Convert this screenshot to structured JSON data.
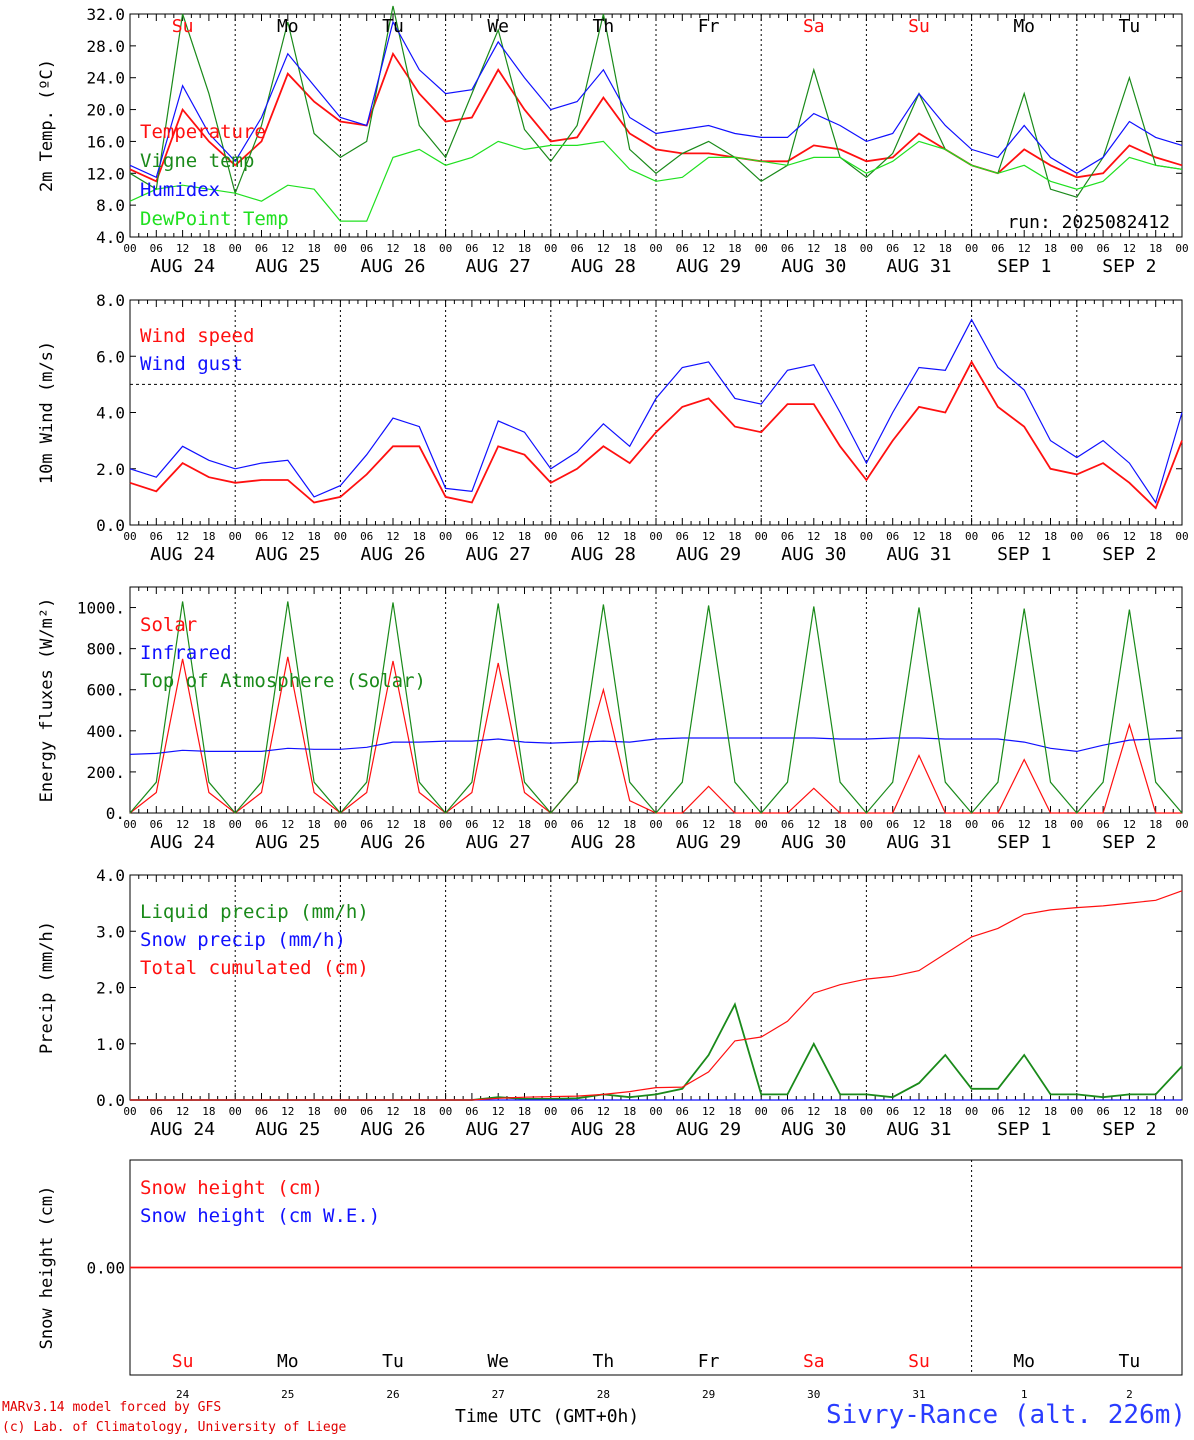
{
  "colors": {
    "red": "#ff1010",
    "dark_green": "#1a8a1a",
    "blue": "#1010ff",
    "light_green": "#20e020",
    "sunday_red": "#ff1010",
    "black": "#000000"
  },
  "day_names": [
    "Su",
    "Mo",
    "Tu",
    "We",
    "Th",
    "Fr",
    "Sa",
    "Su",
    "Mo",
    "Tu"
  ],
  "weekend_days": [
    0,
    6,
    7
  ],
  "date_labels": [
    "AUG 24",
    "AUG 25",
    "AUG 26",
    "AUG 27",
    "AUG 28",
    "AUG 29",
    "AUG 30",
    "AUG 31",
    "SEP  1",
    "SEP  2"
  ],
  "day_numbers": [
    "24",
    "25",
    "26",
    "27",
    "28",
    "29",
    "30",
    "31",
    "1",
    "2"
  ],
  "hour_ticks": [
    "00",
    "06",
    "12",
    "18"
  ],
  "last_hour_tick": "00",
  "footer": {
    "model": "MARv3.14 model forced by GFS",
    "lab": "(c) Lab. of Climatology, University of Liege",
    "time_axis": "Time UTC (GMT+0h)",
    "station": "Sivry-Rance (alt. 226m)"
  },
  "chart_data": [
    {
      "type": "line",
      "ylabel": "2m Temp. (ºC)",
      "ylim": [
        4,
        32
      ],
      "yticks": [
        "4.0",
        "8.0",
        "12.0",
        "16.0",
        "20.0",
        "24.0",
        "28.0",
        "32.0"
      ],
      "annotation": "run: 2025082412",
      "x": [
        "Aug 24 00",
        "Aug 24 06",
        "Aug 24 12",
        "Aug 24 18",
        "Aug 25 00",
        "Aug 25 06",
        "Aug 25 12",
        "Aug 25 18",
        "Aug 26 00",
        "Aug 26 06",
        "Aug 26 12",
        "Aug 26 18",
        "Aug 27 00",
        "Aug 27 06",
        "Aug 27 12",
        "Aug 27 18",
        "Aug 28 00",
        "Aug 28 06",
        "Aug 28 12",
        "Aug 28 18",
        "Aug 29 00",
        "Aug 29 06",
        "Aug 29 12",
        "Aug 29 18",
        "Aug 30 00",
        "Aug 30 06",
        "Aug 30 12",
        "Aug 30 18",
        "Aug 31 00",
        "Aug 31 06",
        "Aug 31 12",
        "Aug 31 18",
        "Sep 1 00",
        "Sep 1 06",
        "Sep 1 12",
        "Sep 1 18",
        "Sep 2 00",
        "Sep 2 06",
        "Sep 2 12",
        "Sep 2 18",
        "Sep 3 00"
      ],
      "series": [
        {
          "name": "Temperature",
          "color": "#ff1010",
          "values": [
            12.5,
            11.0,
            20.0,
            16.0,
            13.0,
            16.0,
            24.5,
            21.0,
            18.5,
            18.0,
            27.0,
            22.0,
            18.5,
            19.0,
            25.0,
            20.0,
            16.0,
            16.5,
            21.5,
            17.0,
            15.0,
            14.5,
            14.5,
            14.0,
            13.5,
            13.5,
            15.5,
            15.0,
            13.5,
            14.0,
            17.0,
            15.0,
            13.0,
            12.0,
            15.0,
            13.0,
            11.5,
            12.0,
            15.5,
            14.0,
            13.0
          ]
        },
        {
          "name": "Vigne temp",
          "color": "#1a8a1a",
          "values": [
            12.0,
            10.0,
            32.0,
            22.0,
            9.5,
            18.0,
            31.0,
            17.0,
            14.0,
            16.0,
            33.0,
            18.0,
            14.0,
            22.0,
            30.0,
            17.5,
            13.5,
            18.0,
            32.0,
            15.0,
            12.0,
            14.5,
            16.0,
            14.0,
            11.0,
            13.0,
            25.0,
            14.0,
            11.5,
            14.5,
            22.0,
            15.0,
            13.0,
            12.0,
            22.0,
            10.0,
            9.0,
            14.0,
            24.0,
            13.0,
            12.5
          ]
        },
        {
          "name": "Humidex",
          "color": "#1010ff",
          "values": [
            13.0,
            11.5,
            23.0,
            17.0,
            13.5,
            19.0,
            27.0,
            23.0,
            19.0,
            18.0,
            31.0,
            25.0,
            22.0,
            22.5,
            28.5,
            24.0,
            20.0,
            21.0,
            25.0,
            19.0,
            17.0,
            17.5,
            18.0,
            17.0,
            16.5,
            16.5,
            19.5,
            18.0,
            16.0,
            17.0,
            22.0,
            18.0,
            15.0,
            14.0,
            18.0,
            14.0,
            12.0,
            14.0,
            18.5,
            16.5,
            15.5
          ]
        },
        {
          "name": "DewPoint Temp",
          "color": "#20e020",
          "values": [
            8.5,
            10.0,
            10.5,
            10.0,
            9.5,
            8.5,
            10.5,
            10.0,
            6.0,
            6.0,
            14.0,
            15.0,
            13.0,
            14.0,
            16.0,
            15.0,
            15.5,
            15.5,
            16.0,
            12.5,
            11.0,
            11.5,
            14.0,
            14.0,
            13.5,
            13.0,
            14.0,
            14.0,
            12.0,
            13.5,
            16.0,
            15.0,
            13.0,
            12.0,
            13.0,
            11.0,
            10.0,
            11.0,
            14.0,
            13.0,
            12.5
          ]
        }
      ]
    },
    {
      "type": "line",
      "ylabel": "10m Wind (m/s)",
      "ylim": [
        0,
        8
      ],
      "yticks": [
        "0.0",
        "2.0",
        "4.0",
        "6.0",
        "8.0"
      ],
      "reference_line": 5.0,
      "series": [
        {
          "name": "Wind speed",
          "color": "#ff1010",
          "values": [
            1.5,
            1.2,
            2.2,
            1.7,
            1.5,
            1.6,
            1.6,
            0.8,
            1.0,
            1.8,
            2.8,
            2.8,
            1.0,
            0.8,
            2.8,
            2.5,
            1.5,
            2.0,
            2.8,
            2.2,
            3.3,
            4.2,
            4.5,
            3.5,
            3.3,
            4.3,
            4.3,
            2.8,
            1.6,
            3.0,
            4.2,
            4.0,
            5.8,
            4.2,
            3.5,
            2.0,
            1.8,
            2.2,
            1.5,
            0.6,
            3.0
          ]
        },
        {
          "name": "Wind gust",
          "color": "#1010ff",
          "values": [
            2.0,
            1.7,
            2.8,
            2.3,
            2.0,
            2.2,
            2.3,
            1.0,
            1.4,
            2.5,
            3.8,
            3.5,
            1.3,
            1.2,
            3.7,
            3.3,
            2.0,
            2.6,
            3.6,
            2.8,
            4.5,
            5.6,
            5.8,
            4.5,
            4.3,
            5.5,
            5.7,
            4.0,
            2.2,
            4.0,
            5.6,
            5.5,
            7.3,
            5.6,
            4.8,
            3.0,
            2.4,
            3.0,
            2.2,
            0.8,
            4.0
          ]
        }
      ]
    },
    {
      "type": "line",
      "ylabel": "Energy fluxes (W/m²)",
      "ylim": [
        0,
        1100
      ],
      "yticks": [
        "0.",
        "200.",
        "400.",
        "600.",
        "800.",
        "1000."
      ],
      "series": [
        {
          "name": "Solar",
          "color": "#ff1010",
          "values": [
            0,
            100,
            750,
            100,
            0,
            100,
            760,
            100,
            0,
            100,
            740,
            100,
            0,
            100,
            730,
            100,
            0,
            150,
            600,
            60,
            0,
            0,
            130,
            0,
            0,
            0,
            120,
            0,
            0,
            0,
            280,
            0,
            0,
            0,
            260,
            0,
            0,
            0,
            430,
            0,
            0
          ]
        },
        {
          "name": "Infrared",
          "color": "#1010ff",
          "values": [
            285,
            290,
            305,
            300,
            300,
            300,
            315,
            310,
            310,
            320,
            345,
            345,
            350,
            350,
            360,
            345,
            340,
            345,
            350,
            345,
            360,
            365,
            365,
            365,
            365,
            365,
            365,
            360,
            360,
            365,
            365,
            360,
            360,
            360,
            345,
            315,
            300,
            330,
            355,
            360,
            365
          ]
        },
        {
          "name": "Top of Atmosphere (Solar)",
          "color": "#1a8a1a",
          "values": [
            0,
            150,
            1030,
            150,
            0,
            150,
            1030,
            150,
            0,
            150,
            1025,
            150,
            0,
            150,
            1020,
            150,
            0,
            150,
            1015,
            150,
            0,
            150,
            1010,
            150,
            0,
            150,
            1005,
            150,
            0,
            150,
            1000,
            150,
            0,
            150,
            995,
            150,
            0,
            150,
            990,
            150,
            0
          ]
        }
      ]
    },
    {
      "type": "line",
      "ylabel": "Precip (mm/h)",
      "ylim": [
        0,
        4
      ],
      "yticks": [
        "0.0",
        "1.0",
        "2.0",
        "3.0",
        "4.0"
      ],
      "series": [
        {
          "name": "Liquid precip (mm/h)",
          "color": "#1a8a1a",
          "values": [
            0,
            0,
            0,
            0,
            0,
            0,
            0,
            0,
            0,
            0,
            0,
            0,
            0,
            0,
            0.05,
            0.02,
            0.02,
            0.03,
            0.1,
            0.05,
            0.1,
            0.2,
            0.8,
            1.7,
            0.1,
            0.1,
            1.0,
            0.1,
            0.1,
            0.05,
            0.3,
            0.8,
            0.2,
            0.2,
            0.8,
            0.1,
            0.1,
            0.05,
            0.1,
            0.1,
            0.6
          ]
        },
        {
          "name": "Snow precip (mm/h)",
          "color": "#1010ff",
          "values": [
            0,
            0,
            0,
            0,
            0,
            0,
            0,
            0,
            0,
            0,
            0,
            0,
            0,
            0,
            0,
            0,
            0,
            0,
            0,
            0,
            0,
            0,
            0,
            0,
            0,
            0,
            0,
            0,
            0,
            0,
            0,
            0,
            0,
            0,
            0,
            0,
            0,
            0,
            0,
            0,
            0
          ]
        },
        {
          "name": "Total cumulated (cm)",
          "color": "#ff1010",
          "values": [
            0,
            0,
            0,
            0,
            0,
            0,
            0,
            0,
            0,
            0,
            0,
            0,
            0,
            0,
            0.03,
            0.05,
            0.06,
            0.07,
            0.1,
            0.15,
            0.22,
            0.23,
            0.5,
            1.05,
            1.12,
            1.4,
            1.9,
            2.05,
            2.15,
            2.2,
            2.3,
            2.6,
            2.9,
            3.05,
            3.3,
            3.38,
            3.42,
            3.45,
            3.5,
            3.55,
            3.72
          ]
        }
      ]
    },
    {
      "type": "line",
      "ylabel": "Snow height (cm)",
      "yticks": [
        "0.00"
      ],
      "series": [
        {
          "name": "Snow height (cm)",
          "color": "#ff1010",
          "values": [
            0,
            0
          ]
        },
        {
          "name": "Snow height (cm W.E.)",
          "color": "#1010ff",
          "values": [
            0,
            0
          ]
        }
      ]
    }
  ]
}
